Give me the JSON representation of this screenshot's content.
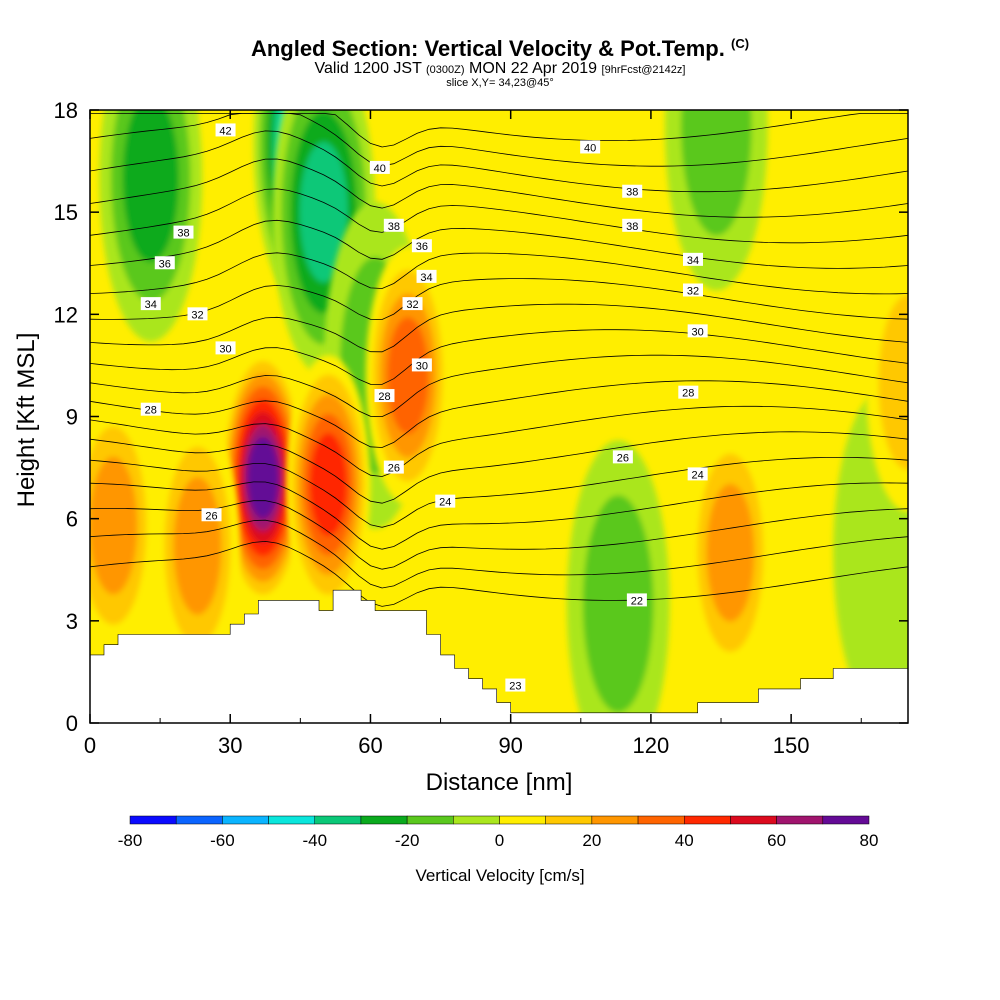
{
  "header": {
    "title": "Angled Section: Vertical Velocity & Pot.Temp.",
    "title_mark": "(C)",
    "valid_prefix": "Valid 1200 JST",
    "valid_utc": "(0300Z)",
    "valid_date": "MON 22 Apr 2019",
    "forecast": "[9hrFcst@2142z]",
    "slice": "slice X,Y= 34,23@45°"
  },
  "colorbar": {
    "label": "Vertical Velocity [cm/s]",
    "tick_labels": [
      "-80",
      "-60",
      "-40",
      "-20",
      "0",
      "20",
      "40",
      "60",
      "80"
    ],
    "levels": [
      -80,
      -70,
      -60,
      -50,
      -40,
      -30,
      -20,
      -10,
      0,
      10,
      20,
      30,
      40,
      50,
      60,
      70,
      80
    ],
    "colors": [
      "#0a0aff",
      "#0a64ff",
      "#0ab4ff",
      "#0ae6dc",
      "#0ac878",
      "#0aaa1e",
      "#5ac81e",
      "#aae61e",
      "#ffee00",
      "#ffc800",
      "#ff9600",
      "#ff6400",
      "#ff2800",
      "#dc0a1e",
      "#a0146e",
      "#640a96"
    ]
  },
  "chart_data": {
    "type": "heatmap",
    "title": "Angled Section: Vertical Velocity & Pot.Temp.",
    "xlabel": "Distance [nm]",
    "ylabel": "Height [Kft MSL]",
    "xlim": [
      0,
      175
    ],
    "ylim": [
      0,
      18
    ],
    "x_ticks": [
      0,
      30,
      60,
      90,
      120,
      150
    ],
    "y_ticks": [
      0,
      3,
      6,
      9,
      12,
      15,
      18
    ],
    "z_label": "Vertical Velocity [cm/s]",
    "z_range": [
      -80,
      80
    ],
    "updraft_cores": [
      {
        "x": 37,
        "y": 7.2,
        "w": 80
      },
      {
        "x": 51,
        "y": 7.0,
        "w": 55
      },
      {
        "x": 5,
        "y": 5.8,
        "w": 35
      },
      {
        "x": 23,
        "y": 5.2,
        "w": 38
      },
      {
        "x": 68,
        "y": 10.2,
        "w": 45
      },
      {
        "x": 137,
        "y": 5.0,
        "w": 38
      },
      {
        "x": 175,
        "y": 10.0,
        "w": 20
      }
    ],
    "downdraft_cores": [
      {
        "x": 46,
        "y": 17.0,
        "w": -60
      },
      {
        "x": 50,
        "y": 15.0,
        "w": -45
      },
      {
        "x": 13,
        "y": 16.0,
        "w": -35
      },
      {
        "x": 61,
        "y": 10.5,
        "w": -22
      },
      {
        "x": 113,
        "y": 3.5,
        "w": -22
      },
      {
        "x": 170,
        "y": 5.0,
        "w": -12
      },
      {
        "x": 134,
        "y": 17.5,
        "w": -22
      }
    ],
    "terrain": [
      [
        0,
        2
      ],
      [
        3,
        2
      ],
      [
        3,
        2.3
      ],
      [
        6,
        2.3
      ],
      [
        6,
        2.6
      ],
      [
        30,
        2.6
      ],
      [
        30,
        2.9
      ],
      [
        33,
        2.9
      ],
      [
        33,
        3.2
      ],
      [
        36,
        3.2
      ],
      [
        36,
        3.6
      ],
      [
        49,
        3.6
      ],
      [
        49,
        3.3
      ],
      [
        52,
        3.3
      ],
      [
        52,
        3.9
      ],
      [
        58,
        3.9
      ],
      [
        58,
        3.6
      ],
      [
        61,
        3.6
      ],
      [
        61,
        3.3
      ],
      [
        72,
        3.3
      ],
      [
        72,
        2.6
      ],
      [
        75,
        2.6
      ],
      [
        75,
        2.0
      ],
      [
        78,
        2.0
      ],
      [
        78,
        1.6
      ],
      [
        81,
        1.6
      ],
      [
        81,
        1.3
      ],
      [
        84,
        1.3
      ],
      [
        84,
        1.0
      ],
      [
        87,
        1.0
      ],
      [
        87,
        0.6
      ],
      [
        90,
        0.6
      ],
      [
        90,
        0.3
      ],
      [
        130,
        0.3
      ],
      [
        130,
        0.6
      ],
      [
        143,
        0.6
      ],
      [
        143,
        1.0
      ],
      [
        152,
        1.0
      ],
      [
        152,
        1.3
      ],
      [
        159,
        1.3
      ],
      [
        159,
        1.6
      ],
      [
        175,
        1.6
      ]
    ],
    "theta_contours": {
      "levels": [
        22,
        23,
        24,
        25,
        26,
        27,
        28,
        29,
        30,
        31,
        32,
        33,
        34,
        35,
        36,
        37,
        38,
        39,
        40,
        41,
        42
      ],
      "labels": [
        {
          "text": "42",
          "x": 29,
          "y": 17.4
        },
        {
          "text": "40",
          "x": 62,
          "y": 16.3
        },
        {
          "text": "40",
          "x": 107,
          "y": 16.9
        },
        {
          "text": "38",
          "x": 116,
          "y": 15.6
        },
        {
          "text": "38",
          "x": 65,
          "y": 14.6
        },
        {
          "text": "38",
          "x": 116,
          "y": 14.6
        },
        {
          "text": "38",
          "x": 20,
          "y": 14.4
        },
        {
          "text": "36",
          "x": 71,
          "y": 14.0
        },
        {
          "text": "36",
          "x": 16,
          "y": 13.5
        },
        {
          "text": "34",
          "x": 72,
          "y": 13.1
        },
        {
          "text": "34",
          "x": 129,
          "y": 13.6
        },
        {
          "text": "34",
          "x": 13,
          "y": 12.3
        },
        {
          "text": "32",
          "x": 69,
          "y": 12.3
        },
        {
          "text": "32",
          "x": 129,
          "y": 12.7
        },
        {
          "text": "32",
          "x": 23,
          "y": 12.0
        },
        {
          "text": "30",
          "x": 130,
          "y": 11.5
        },
        {
          "text": "30",
          "x": 71,
          "y": 10.5
        },
        {
          "text": "30",
          "x": 29,
          "y": 11.0
        },
        {
          "text": "28",
          "x": 128,
          "y": 9.7
        },
        {
          "text": "28",
          "x": 63,
          "y": 9.6
        },
        {
          "text": "28",
          "x": 13,
          "y": 9.2
        },
        {
          "text": "26",
          "x": 114,
          "y": 7.8
        },
        {
          "text": "26",
          "x": 65,
          "y": 7.5
        },
        {
          "text": "24",
          "x": 130,
          "y": 7.3
        },
        {
          "text": "24",
          "x": 76,
          "y": 6.5
        },
        {
          "text": "26",
          "x": 26,
          "y": 6.1
        },
        {
          "text": "22",
          "x": 117,
          "y": 3.6
        },
        {
          "text": "23",
          "x": 91,
          "y": 1.1
        }
      ]
    }
  }
}
